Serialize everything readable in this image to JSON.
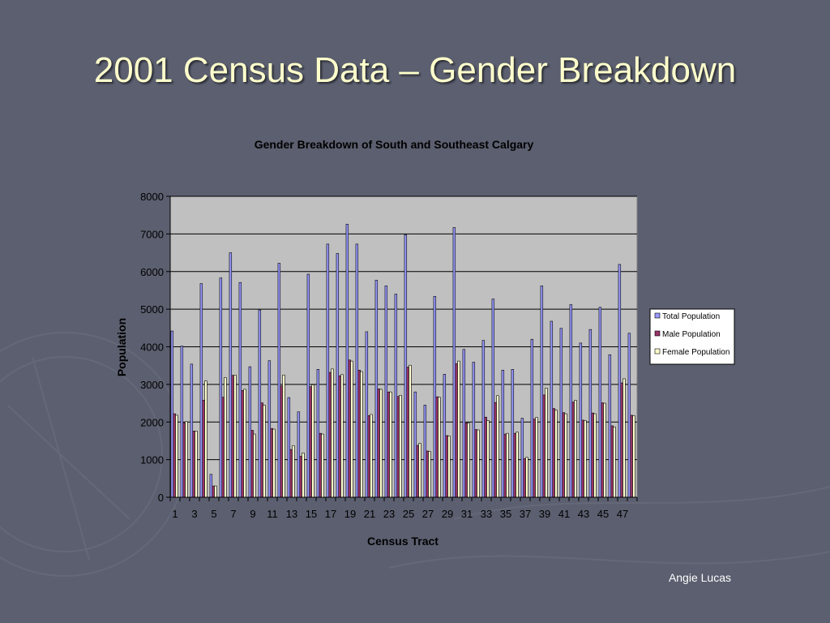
{
  "slide": {
    "title": "2001 Census Data – Gender Breakdown",
    "author": "Angie Lucas"
  },
  "colors": {
    "background": "#5b5f6f",
    "title": "#ffffcc",
    "plot_area": "#c0c0c0",
    "total": "#9999ff",
    "male": "#993366",
    "female": "#ffffcc"
  },
  "chart_data": {
    "type": "bar",
    "title": "Gender Breakdown of South and Southeast Calgary",
    "xlabel": "Census Tract",
    "ylabel": "Population",
    "ylim": [
      0,
      8000
    ],
    "yticks": [
      0,
      1000,
      2000,
      3000,
      4000,
      5000,
      6000,
      7000,
      8000
    ],
    "grid": true,
    "legend": "right",
    "categories": [
      1,
      2,
      3,
      4,
      5,
      6,
      7,
      8,
      9,
      10,
      11,
      12,
      13,
      14,
      15,
      16,
      17,
      18,
      19,
      20,
      21,
      22,
      23,
      24,
      25,
      26,
      27,
      28,
      29,
      30,
      31,
      32,
      33,
      34,
      35,
      36,
      37,
      38,
      39,
      40,
      41,
      42,
      43,
      44,
      45,
      46,
      47,
      48
    ],
    "xtick_labels": [
      "1",
      "3",
      "5",
      "7",
      "9",
      "11",
      "13",
      "15",
      "17",
      "19",
      "21",
      "23",
      "25",
      "27",
      "29",
      "31",
      "33",
      "35",
      "37",
      "39",
      "41",
      "43",
      "45",
      "47"
    ],
    "series": [
      {
        "name": "Total Population",
        "values": [
          4420,
          4020,
          3540,
          5680,
          610,
          5830,
          6500,
          5710,
          3470,
          4980,
          3630,
          6220,
          2650,
          2270,
          5930,
          3400,
          6730,
          6480,
          7260,
          6730,
          4400,
          5770,
          5620,
          5400,
          6980,
          2800,
          2450,
          5340,
          3270,
          7170,
          3930,
          3590,
          4170,
          5270,
          3380,
          3400,
          2100,
          4200,
          5620,
          4680,
          4490,
          5120,
          4100,
          4460,
          5050,
          3790,
          6190,
          4360
        ]
      },
      {
        "name": "Male Population",
        "values": [
          2220,
          1980,
          1760,
          2580,
          300,
          2660,
          3240,
          2840,
          1780,
          2510,
          1830,
          2960,
          1270,
          1090,
          2940,
          1700,
          3320,
          3230,
          3650,
          3380,
          2170,
          2880,
          2800,
          2680,
          3460,
          1380,
          1230,
          2670,
          1640,
          3550,
          1980,
          1800,
          2130,
          2520,
          1680,
          1700,
          1030,
          2080,
          2720,
          2360,
          2250,
          2530,
          2050,
          2240,
          2510,
          1900,
          3040,
          2180
        ]
      },
      {
        "name": "Female Population",
        "values": [
          2180,
          2010,
          1760,
          3090,
          300,
          3180,
          3250,
          2870,
          1680,
          2450,
          1810,
          3250,
          1370,
          1180,
          2990,
          1680,
          3410,
          3260,
          3620,
          3340,
          2200,
          2870,
          2800,
          2710,
          3510,
          1430,
          1220,
          2660,
          1630,
          3620,
          1970,
          1790,
          2040,
          2700,
          1700,
          1730,
          1060,
          2120,
          2900,
          2320,
          2220,
          2580,
          2040,
          2220,
          2500,
          1870,
          3150,
          2170
        ]
      }
    ]
  }
}
